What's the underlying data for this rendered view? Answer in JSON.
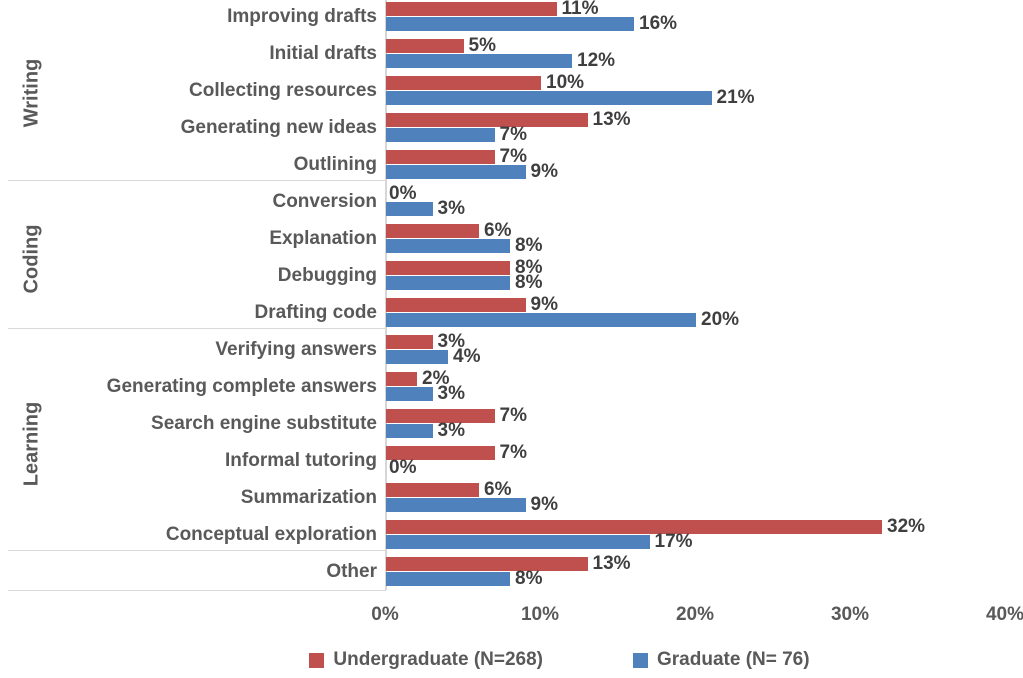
{
  "chart_data": {
    "type": "bar",
    "orientation": "horizontal",
    "title": "",
    "xlabel": "",
    "ylabel": "",
    "xlim": [
      0,
      40
    ],
    "x_ticks": [
      "0%",
      "10%",
      "20%",
      "30%",
      "40%"
    ],
    "x_tick_values": [
      0,
      10,
      20,
      30,
      40
    ],
    "grid": false,
    "legend_position": "bottom",
    "groups": [
      {
        "label": "Writing",
        "count": 5
      },
      {
        "label": "Coding",
        "count": 4
      },
      {
        "label": "Learning",
        "count": 6
      },
      {
        "label": "",
        "count": 1
      }
    ],
    "categories": [
      "Improving drafts",
      "Initial drafts",
      "Collecting resources",
      "Generating new ideas",
      "Outlining",
      "Conversion",
      "Explanation",
      "Debugging",
      "Drafting code",
      "Verifying answers",
      "Generating complete answers",
      "Search engine substitute",
      "Informal tutoring",
      "Summarization",
      "Conceptual exploration",
      "Other"
    ],
    "series": [
      {
        "name": "Undergraduate (N=268)",
        "key": "undergraduate",
        "color": "#C0504D",
        "values": [
          11,
          5,
          10,
          13,
          7,
          0,
          6,
          8,
          9,
          3,
          2,
          7,
          7,
          6,
          32,
          13
        ],
        "value_labels": [
          "11%",
          "5%",
          "10%",
          "13%",
          "7%",
          "0%",
          "6%",
          "8%",
          "9%",
          "3%",
          "2%",
          "7%",
          "7%",
          "6%",
          "32%",
          "13%"
        ]
      },
      {
        "name": "Graduate (N= 76)",
        "key": "graduate",
        "color": "#4F81BD",
        "values": [
          16,
          12,
          21,
          7,
          9,
          3,
          8,
          8,
          20,
          4,
          3,
          3,
          0,
          9,
          17,
          8
        ],
        "value_labels": [
          "16%",
          "12%",
          "21%",
          "7%",
          "9%",
          "3%",
          "8%",
          "8%",
          "20%",
          "4%",
          "3%",
          "3%",
          "0%",
          "9%",
          "17%",
          "8%"
        ]
      }
    ]
  },
  "colors": {
    "undergraduate": "#C0504D",
    "graduate": "#4F81BD",
    "axis_line": "#D6D6D6",
    "separator_line": "#D9D9D9",
    "category_text": "#595959",
    "value_text": "#3F3F3F"
  }
}
